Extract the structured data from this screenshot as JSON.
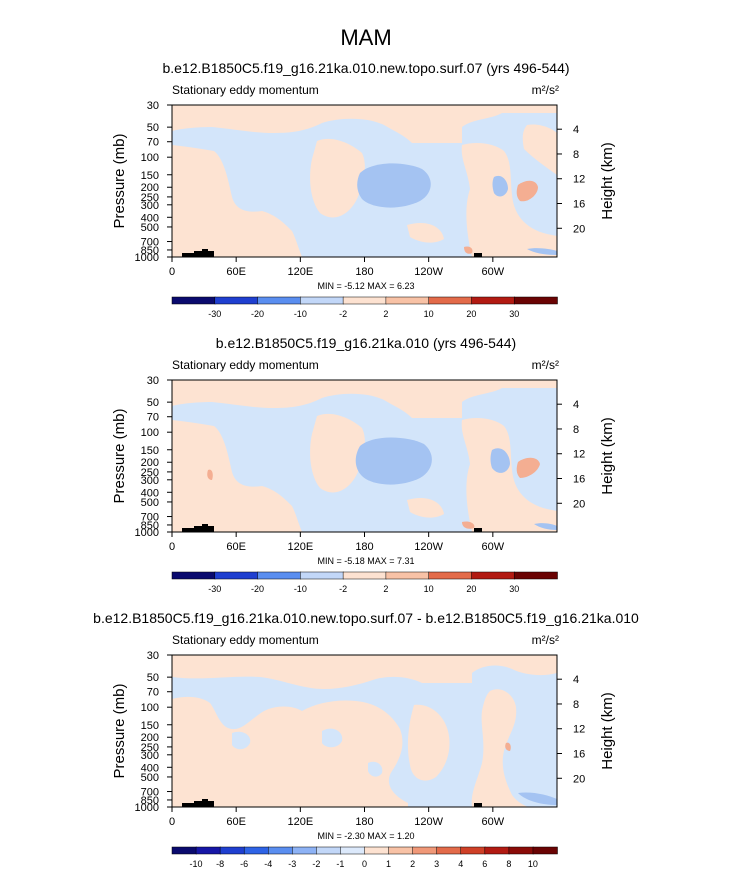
{
  "figure": {
    "title": "MAM"
  },
  "chart_data": [
    {
      "type": "heatmap",
      "title": "b.e12.B1850C5.f19_g16.21ka.010.new.topo.surf.07 (yrs 496-544)",
      "subtitle_left": "Stationary eddy momentum",
      "units_label": "m²/s²",
      "xlabel": "",
      "ylabel": "Pressure (mb)",
      "ylabel_right": "Height (km)",
      "x_ticks": [
        "0",
        "60E",
        "120E",
        "180",
        "120W",
        "60W"
      ],
      "y_ticks": [
        "30",
        "50",
        "70",
        "100",
        "150",
        "200",
        "250",
        "300",
        "400",
        "500",
        "700",
        "850",
        "1000"
      ],
      "height_ticks": [
        "4",
        "8",
        "12",
        "16",
        "20"
      ],
      "stats": "MIN = -5.12   MAX =  6.23",
      "min": -5.12,
      "max": 6.23,
      "colorbar_labels": [
        "-30",
        "-20",
        "-10",
        "-2",
        "2",
        "10",
        "20",
        "30"
      ],
      "colorbar_levels": [
        -30,
        -20,
        -10,
        -2,
        2,
        10,
        20,
        30
      ]
    },
    {
      "type": "heatmap",
      "title": "b.e12.B1850C5.f19_g16.21ka.010 (yrs 496-544)",
      "subtitle_left": "Stationary eddy momentum",
      "units_label": "m²/s²",
      "xlabel": "",
      "ylabel": "Pressure (mb)",
      "ylabel_right": "Height (km)",
      "x_ticks": [
        "0",
        "60E",
        "120E",
        "180",
        "120W",
        "60W"
      ],
      "y_ticks": [
        "30",
        "50",
        "70",
        "100",
        "150",
        "200",
        "250",
        "300",
        "400",
        "500",
        "700",
        "850",
        "1000"
      ],
      "height_ticks": [
        "4",
        "8",
        "12",
        "16",
        "20"
      ],
      "stats": "MIN = -5.18   MAX =  7.31",
      "min": -5.18,
      "max": 7.31,
      "colorbar_labels": [
        "-30",
        "-20",
        "-10",
        "-2",
        "2",
        "10",
        "20",
        "30"
      ],
      "colorbar_levels": [
        -30,
        -20,
        -10,
        -2,
        2,
        10,
        20,
        30
      ]
    },
    {
      "type": "heatmap",
      "title": "b.e12.B1850C5.f19_g16.21ka.010.new.topo.surf.07 - b.e12.B1850C5.f19_g16.21ka.010",
      "subtitle_left": "Stationary eddy momentum",
      "units_label": "m²/s²",
      "xlabel": "",
      "ylabel": "Pressure (mb)",
      "ylabel_right": "Height (km)",
      "x_ticks": [
        "0",
        "60E",
        "120E",
        "180",
        "120W",
        "60W"
      ],
      "y_ticks": [
        "30",
        "50",
        "70",
        "100",
        "150",
        "200",
        "250",
        "300",
        "400",
        "500",
        "700",
        "850",
        "1000"
      ],
      "height_ticks": [
        "4",
        "8",
        "12",
        "16",
        "20"
      ],
      "stats": "MIN = -2.30   MAX =  1.20",
      "min": -2.3,
      "max": 1.2,
      "colorbar_labels": [
        "-10",
        "-8",
        "-6",
        "-4",
        "-3",
        "-2",
        "-1",
        "0",
        "1",
        "2",
        "3",
        "4",
        "6",
        "8",
        "10"
      ],
      "colorbar_levels": [
        -10,
        -8,
        -6,
        -4,
        -3,
        -2,
        -1,
        0,
        1,
        2,
        3,
        4,
        6,
        8,
        10
      ]
    }
  ],
  "colors": {
    "palette": [
      "#0a0a6e",
      "#1616a6",
      "#1f3fd0",
      "#2e63e6",
      "#5a8ef0",
      "#8db2f5",
      "#c2d7f8",
      "#dce9fb",
      "#fde2d1",
      "#f8c2a6",
      "#f09878",
      "#e36b4a",
      "#cf4027",
      "#b21a12",
      "#8a0b08",
      "#6a0303"
    ],
    "neutral_blue": "#d3e5fa",
    "neutral_red": "#fde3d2",
    "mid_blue": "#a4c3f2",
    "mid_red": "#f4ae92",
    "topo": "#000000"
  }
}
